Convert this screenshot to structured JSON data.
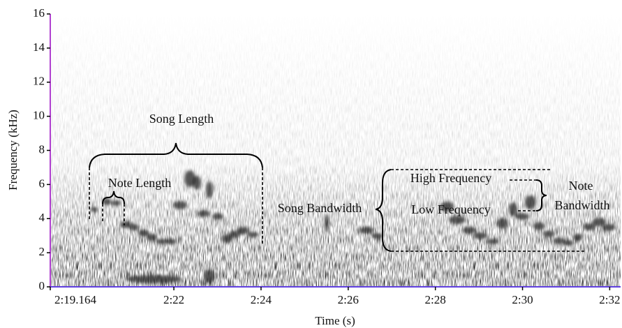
{
  "chart_data": {
    "type": "spectrogram",
    "x_label": "Time (s)",
    "y_label": "Frequency (kHz)",
    "xlim": [
      139.164,
      152.25
    ],
    "xticks": [
      {
        "value": 139.164,
        "label": "2:19.164"
      },
      {
        "value": 142,
        "label": "2:22"
      },
      {
        "value": 144,
        "label": "2:24"
      },
      {
        "value": 146,
        "label": "2:26"
      },
      {
        "value": 148,
        "label": "2:28"
      },
      {
        "value": 150,
        "label": "2:30"
      },
      {
        "value": 152,
        "label": "2:32"
      }
    ],
    "ylim": [
      0,
      16
    ],
    "yticks": [
      0,
      2,
      4,
      6,
      8,
      10,
      12,
      14,
      16
    ],
    "annotations": {
      "song_length": "Song Length",
      "note_length": "Note Length",
      "song_bandwidth": "Song Bandwidth",
      "high_frequency": "High Frequency",
      "low_frequency": "Low Frequency",
      "note_bandwidth": [
        "Note",
        "Bandwidth"
      ]
    }
  }
}
